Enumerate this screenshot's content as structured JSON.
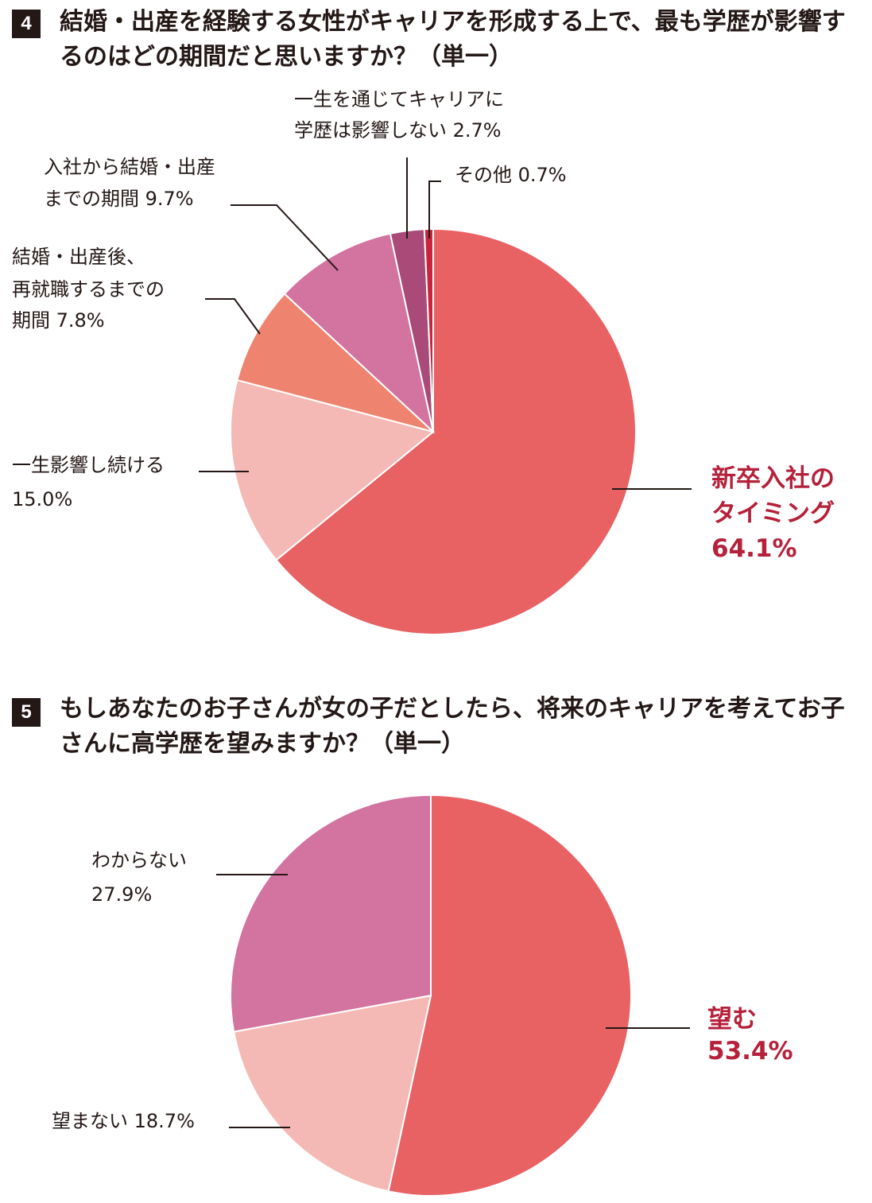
{
  "chart_data": [
    {
      "type": "pie",
      "badge": "4",
      "title": "結婚・出産を経験する女性がキャリアを形成する上で、最も学歴が影響するのはどの期間だと思いますか？（単一）",
      "categories": [
        [
          "新卒入社の",
          "タイミング"
        ],
        [
          "一生影響し続ける"
        ],
        [
          "結婚・出産後、",
          "再就職するまでの",
          "期間"
        ],
        [
          "入社から結婚・出産",
          "までの期間"
        ],
        [
          "一生を通じてキャリアに",
          "学歴は影響しない"
        ],
        [
          "その他"
        ]
      ],
      "values": [
        64.1,
        15.0,
        7.8,
        9.7,
        2.7,
        0.7
      ],
      "value_labels": [
        "64.1%",
        "15.0%",
        "7.8%",
        "9.7%",
        "2.7%",
        "0.7%"
      ],
      "colors": [
        "#e86163",
        "#f4b9b5",
        "#ee8470",
        "#d373a0",
        "#a94a78",
        "#c8243b"
      ]
    },
    {
      "type": "pie",
      "badge": "5",
      "title": "もしあなたのお子さんが女の子だとしたら、将来のキャリアを考えてお子さんに高学歴を望みますか？（単一）",
      "categories": [
        [
          "望む"
        ],
        [
          "望まない"
        ],
        [
          "わからない"
        ]
      ],
      "values": [
        53.4,
        18.7,
        27.9
      ],
      "value_labels": [
        "53.4%",
        "18.7%",
        "27.9%"
      ],
      "colors": [
        "#e86163",
        "#f4b9b5",
        "#d373a0"
      ]
    }
  ]
}
